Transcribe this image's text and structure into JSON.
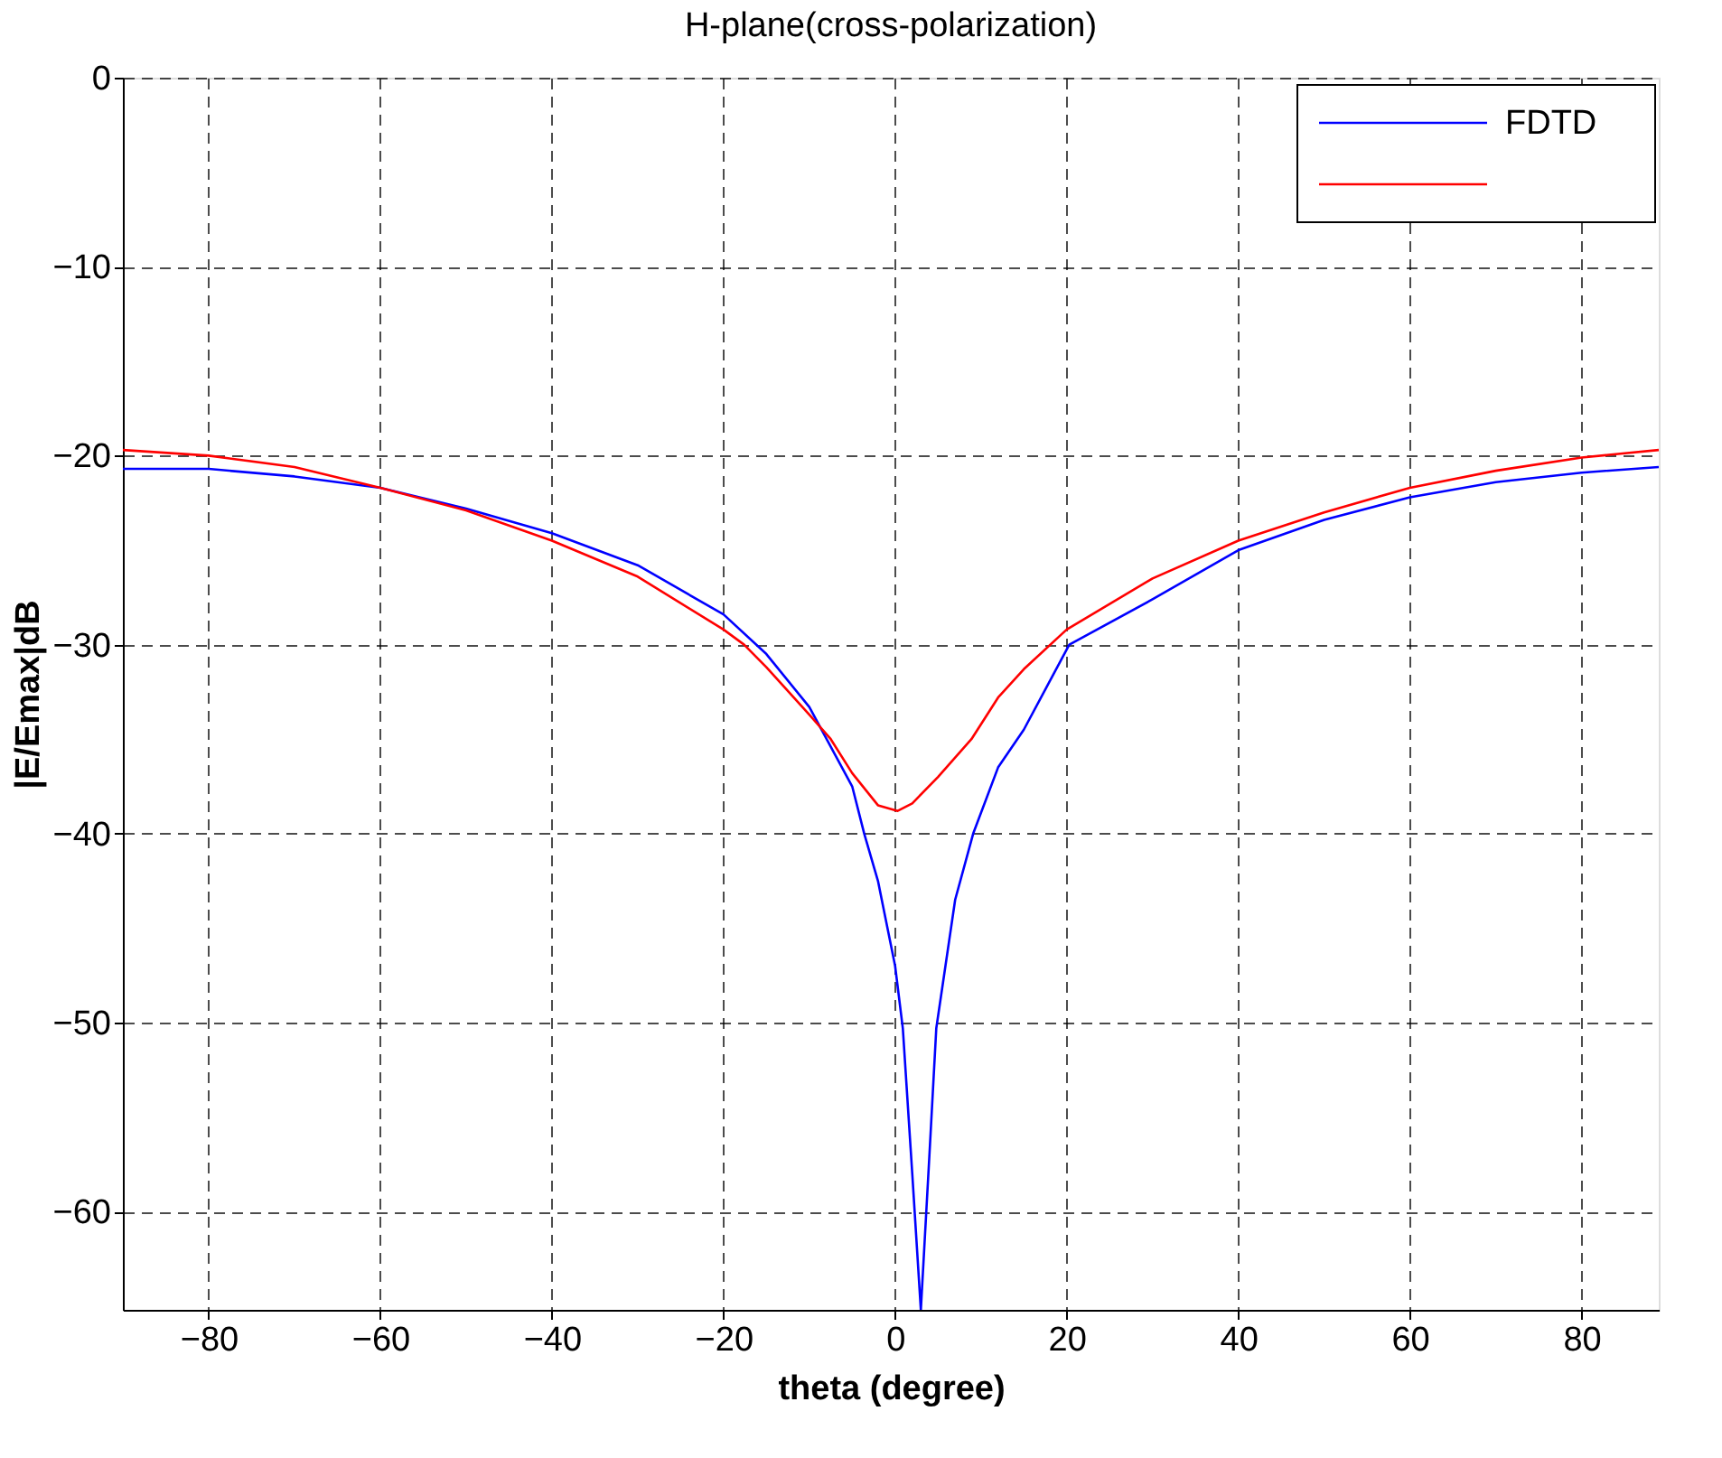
{
  "chart_data": {
    "type": "line",
    "title": "H-plane(cross-polarization)",
    "xlabel": "theta (degree)",
    "ylabel": "|E/Emax|dB",
    "xlim": [
      -90,
      89
    ],
    "ylim": [
      -65.2,
      0
    ],
    "xticks": [
      -80,
      -60,
      -40,
      -20,
      0,
      20,
      40,
      60,
      80
    ],
    "yticks": [
      -60,
      -50,
      -40,
      -30,
      -20,
      -10,
      0
    ],
    "grid": true,
    "legend": "top right",
    "line_style": "solid",
    "marker": "none",
    "series": [
      {
        "name": "FDTD",
        "color": "#0000ff",
        "x": [
          -90,
          -80,
          -70,
          -60,
          -50,
          -40,
          -30,
          -20,
          -15,
          -10,
          -5,
          -3.6,
          -2,
          0,
          0.9,
          2,
          3,
          4,
          4.8,
          7,
          9.1,
          12,
          15,
          20.3,
          30,
          40,
          50,
          60,
          70,
          80,
          89
        ],
        "values": [
          -20.7,
          -20.7,
          -21.1,
          -21.7,
          -22.8,
          -24.1,
          -25.8,
          -28.4,
          -30.5,
          -33.3,
          -37.5,
          -40,
          -42.5,
          -47,
          -50.3,
          -58,
          -65.2,
          -57,
          -50.3,
          -43.5,
          -40,
          -36.5,
          -34.5,
          -30,
          -27.6,
          -25,
          -23.4,
          -22.2,
          -21.4,
          -20.9,
          -20.6
        ]
      },
      {
        "color": "#ff0000",
        "x": [
          -90,
          -80,
          -70,
          -60,
          -50,
          -40,
          -30,
          -20,
          -17.6,
          -15,
          -10,
          -7.5,
          -5,
          -2,
          0.3,
          2,
          5,
          8.9,
          12,
          15,
          20,
          30,
          40,
          50,
          60,
          70,
          80,
          89
        ],
        "values": [
          -19.7,
          -20.0,
          -20.6,
          -21.7,
          -22.9,
          -24.5,
          -26.4,
          -29.2,
          -30,
          -31.2,
          -33.7,
          -35,
          -36.8,
          -38.5,
          -38.8,
          -38.4,
          -37.0,
          -35,
          -32.8,
          -31.3,
          -29.2,
          -26.5,
          -24.5,
          -23,
          -21.7,
          -20.8,
          -20.1,
          -19.7
        ]
      }
    ]
  }
}
